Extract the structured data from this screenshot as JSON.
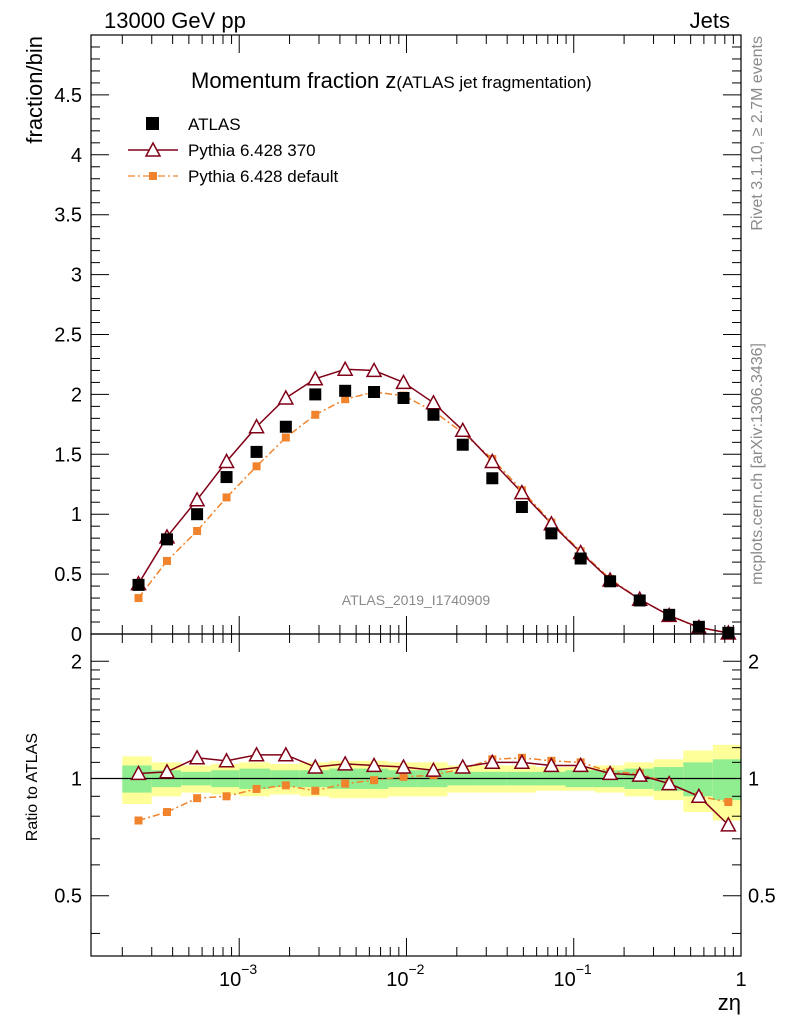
{
  "header": {
    "left": "13000 GeV pp",
    "right": "Jets"
  },
  "side": {
    "rivet": "Rivet 3.1.10, ≥ 2.7M events",
    "mcplots": "mcplots.cern.ch [arXiv:1306.3436]"
  },
  "chart_data": {
    "type": "scatter",
    "title_main": "Momentum fraction z",
    "title_sub": "(ATLAS jet fragmentation)",
    "analysis_label": "ATLAS_2019_I1740909",
    "ylabel": "fraction/bin",
    "ratio_ylabel": "Ratio to ATLAS",
    "xlabel": "zη",
    "xscale": "log",
    "xlim": [
      0.00013,
      1.0
    ],
    "ylim": [
      0,
      5.0
    ],
    "ratio_ylim": [
      0.35,
      2.35
    ],
    "x_tick_labels": [
      {
        "base": "10",
        "exp": "−3",
        "value": 0.001
      },
      {
        "base": "10",
        "exp": "−2",
        "value": 0.01
      },
      {
        "base": "10",
        "exp": "−1",
        "value": 0.1
      },
      {
        "base": "1",
        "exp": "",
        "value": 1
      }
    ],
    "y_ticks": [
      {
        "label": "0",
        "value": 0
      },
      {
        "label": "0.5",
        "value": 0.5
      },
      {
        "label": "1",
        "value": 1
      },
      {
        "label": "1.5",
        "value": 1.5
      },
      {
        "label": "2",
        "value": 2
      },
      {
        "label": "2.5",
        "value": 2.5
      },
      {
        "label": "3",
        "value": 3
      },
      {
        "label": "3.5",
        "value": 3.5
      },
      {
        "label": "4",
        "value": 4
      },
      {
        "label": "4.5",
        "value": 4.5
      }
    ],
    "ratio_y_ticks": [
      {
        "label": "0.5",
        "value": 0.5
      },
      {
        "label": "1",
        "value": 1
      },
      {
        "label": "2",
        "value": 2
      }
    ],
    "x": [
      0.00025,
      0.00037,
      0.00056,
      0.00084,
      0.00127,
      0.0019,
      0.00285,
      0.0043,
      0.0064,
      0.0096,
      0.0145,
      0.0217,
      0.0326,
      0.049,
      0.0735,
      0.11,
      0.165,
      0.248,
      0.372,
      0.56,
      0.84
    ],
    "bin_edges": [
      0.0002,
      0.0003,
      0.00045,
      0.00068,
      0.001,
      0.00153,
      0.0023,
      0.00345,
      0.0052,
      0.0078,
      0.0117,
      0.0176,
      0.0264,
      0.0397,
      0.0595,
      0.0893,
      0.134,
      0.201,
      0.301,
      0.452,
      0.678,
      1.0
    ],
    "series": [
      {
        "name": "ATLAS",
        "color": "#000000",
        "marker": "square",
        "values": [
          0.41,
          0.79,
          1.0,
          1.31,
          1.52,
          1.73,
          2.0,
          2.03,
          2.02,
          1.97,
          1.83,
          1.58,
          1.3,
          1.06,
          0.84,
          0.63,
          0.44,
          0.28,
          0.16,
          0.06,
          0.01
        ]
      },
      {
        "name": "Pythia 6.428 370",
        "color": "#800018",
        "marker": "triangle-open",
        "line": "solid",
        "values": [
          0.42,
          0.81,
          1.12,
          1.44,
          1.73,
          1.97,
          2.13,
          2.21,
          2.2,
          2.1,
          1.93,
          1.7,
          1.44,
          1.18,
          0.92,
          0.68,
          0.45,
          0.29,
          0.155,
          0.055,
          0.008
        ],
        "ratio": [
          1.03,
          1.04,
          1.13,
          1.11,
          1.15,
          1.15,
          1.07,
          1.09,
          1.08,
          1.07,
          1.05,
          1.07,
          1.1,
          1.1,
          1.08,
          1.08,
          1.03,
          1.02,
          0.97,
          0.9,
          0.76
        ]
      },
      {
        "name": "Pythia 6.428 default",
        "color": "#f0832c",
        "marker": "square-small",
        "line": "dashdot",
        "values": [
          0.3,
          0.61,
          0.86,
          1.14,
          1.4,
          1.64,
          1.83,
          1.96,
          2.02,
          1.99,
          1.86,
          1.68,
          1.46,
          1.2,
          0.93,
          0.69,
          0.46,
          0.29,
          0.155,
          0.054,
          0.009
        ],
        "ratio": [
          0.78,
          0.82,
          0.89,
          0.9,
          0.94,
          0.96,
          0.93,
          0.97,
          0.99,
          1.01,
          1.02,
          1.06,
          1.12,
          1.13,
          1.11,
          1.1,
          1.04,
          1.03,
          0.97,
          0.9,
          0.87
        ]
      }
    ],
    "bands": {
      "inner_color": "#90ee90",
      "outer_color": "#ffff99",
      "inner": [
        0.08,
        0.05,
        0.04,
        0.05,
        0.06,
        0.05,
        0.05,
        0.06,
        0.06,
        0.05,
        0.05,
        0.04,
        0.04,
        0.04,
        0.04,
        0.05,
        0.05,
        0.06,
        0.07,
        0.1,
        0.12
      ],
      "outer": [
        0.14,
        0.1,
        0.08,
        0.09,
        0.1,
        0.09,
        0.1,
        0.11,
        0.11,
        0.1,
        0.1,
        0.08,
        0.08,
        0.08,
        0.07,
        0.07,
        0.08,
        0.1,
        0.12,
        0.18,
        0.22
      ]
    }
  }
}
